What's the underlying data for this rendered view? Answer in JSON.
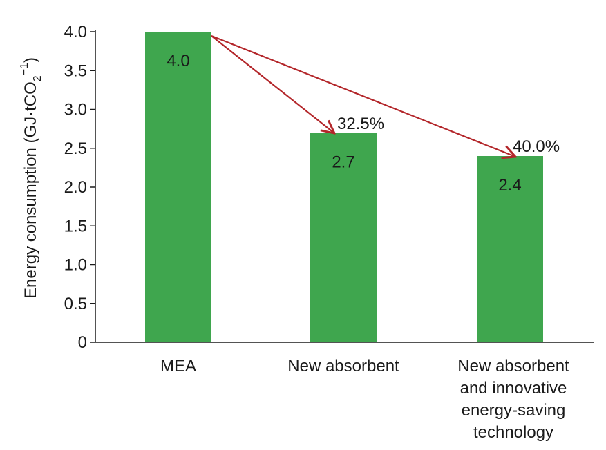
{
  "chart_data": {
    "type": "bar",
    "categories": [
      [
        "MEA"
      ],
      [
        "New absorbent"
      ],
      [
        "New absorbent",
        "and innovative",
        "energy-saving",
        "technology"
      ]
    ],
    "values": [
      4.0,
      2.7,
      2.4
    ],
    "value_labels": [
      "4.0",
      "2.7",
      "2.4"
    ],
    "ylabel": {
      "main": "Energy consumption (GJ·tCO",
      "sub": "2",
      "sup": "−1",
      "close": ")"
    },
    "ylim": [
      0,
      4.0
    ],
    "yticks": [
      0,
      0.5,
      1.0,
      1.5,
      2.0,
      2.5,
      3.0,
      3.5,
      4.0
    ],
    "ytick_labels": [
      "0",
      "0.5",
      "1.0",
      "1.5",
      "2.0",
      "2.5",
      "3.0",
      "3.5",
      "4.0"
    ],
    "annotations": [
      {
        "from": 0,
        "to": 1,
        "text": "32.5%"
      },
      {
        "from": 0,
        "to": 2,
        "text": "40.0%"
      }
    ],
    "grid": false,
    "colors": {
      "bar": "#3fa64e",
      "arrow": "#b3262a",
      "axis": "#1a1a1a"
    }
  }
}
